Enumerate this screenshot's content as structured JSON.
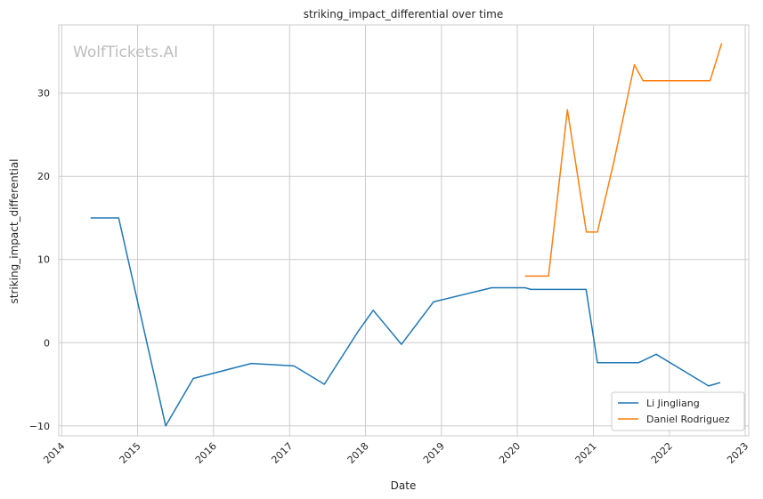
{
  "watermark": "WolfTickets.AI",
  "chart_data": {
    "type": "line",
    "title": "striking_impact_differential over time",
    "xlabel": "Date",
    "ylabel": "striking_impact_differential",
    "xlim": [
      "2013-12-18",
      "2023-01-18"
    ],
    "ylim": [
      -11.2,
      38.2
    ],
    "x_ticks": [
      "2014",
      "2015",
      "2016",
      "2017",
      "2018",
      "2019",
      "2020",
      "2021",
      "2022",
      "2023"
    ],
    "y_ticks": [
      -10,
      0,
      10,
      20,
      30
    ],
    "grid": true,
    "legend_position": "lower-right",
    "series": [
      {
        "name": "Li Jingliang",
        "color": "#1f77b4",
        "points": [
          [
            "2014-05-20",
            15.0
          ],
          [
            "2014-10-02",
            15.0
          ],
          [
            "2015-05-16",
            -10.0
          ],
          [
            "2015-09-26",
            -4.3
          ],
          [
            "2016-07-01",
            -2.5
          ],
          [
            "2017-01-22",
            -2.8
          ],
          [
            "2017-06-17",
            -5.0
          ],
          [
            "2017-11-25",
            1.3
          ],
          [
            "2018-02-07",
            3.9
          ],
          [
            "2018-06-23",
            -0.2
          ],
          [
            "2018-11-24",
            4.9
          ],
          [
            "2019-08-31",
            6.6
          ],
          [
            "2020-02-07",
            6.6
          ],
          [
            "2020-03-07",
            6.4
          ],
          [
            "2020-11-27",
            6.4
          ],
          [
            "2021-01-20",
            -2.4
          ],
          [
            "2021-08-07",
            -2.4
          ],
          [
            "2021-10-30",
            -1.4
          ],
          [
            "2022-07-09",
            -5.2
          ],
          [
            "2022-09-03",
            -4.8
          ]
        ]
      },
      {
        "name": "Daniel Rodriguez",
        "color": "#ff7f0e",
        "points": [
          [
            "2020-02-07",
            8.0
          ],
          [
            "2020-05-30",
            8.0
          ],
          [
            "2020-08-29",
            28.0
          ],
          [
            "2020-11-28",
            13.3
          ],
          [
            "2021-01-20",
            13.3
          ],
          [
            "2021-04-10",
            21.8
          ],
          [
            "2021-07-17",
            33.4
          ],
          [
            "2021-08-28",
            31.5
          ],
          [
            "2022-07-16",
            31.5
          ],
          [
            "2022-09-10",
            36.0
          ]
        ]
      }
    ]
  }
}
